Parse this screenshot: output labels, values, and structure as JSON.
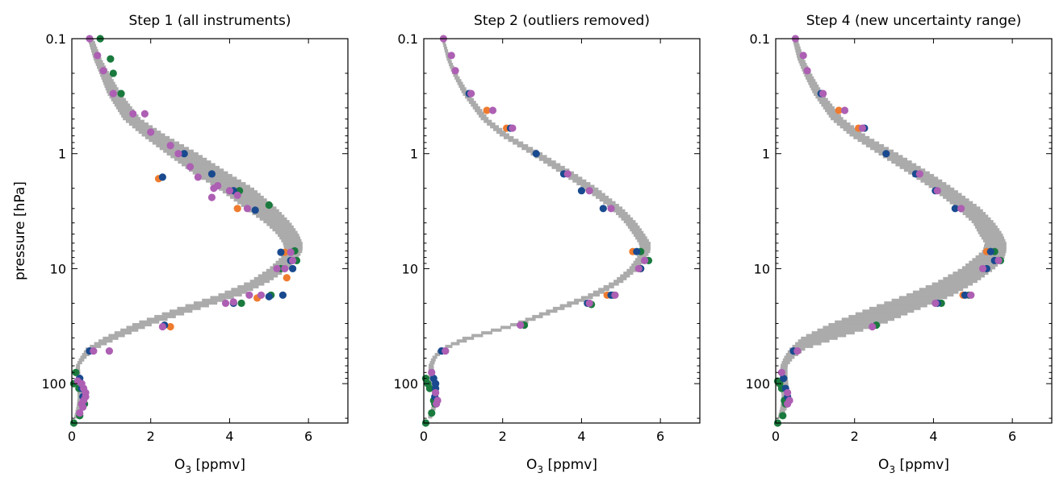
{
  "figure": {
    "ylabel": "pressure [hPa]",
    "xlabel_main": "O",
    "xlabel_sub": "3",
    "xlabel_rest": " [ppmv]",
    "colors": {
      "band": "#ababab",
      "orange": "#ef7b2e",
      "green": "#1a7a3e",
      "blue": "#194a8f",
      "purple": "#ad5fb3",
      "axis": "#000000"
    }
  },
  "chart_data": [
    {
      "type": "scatter",
      "title": "Step 1 (all instruments)",
      "xlabel": "O3 [ppmv]",
      "ylabel": "pressure [hPa]",
      "xlim": [
        0,
        7
      ],
      "ylim": [
        0.1,
        220
      ],
      "yscale": "log",
      "xticks": [
        0,
        2,
        4,
        6
      ],
      "yticks": [
        0.1,
        1,
        10,
        100
      ],
      "band": {
        "p": [
          0.1,
          0.15,
          0.2,
          0.3,
          0.5,
          0.7,
          1.0,
          1.5,
          2.0,
          3.0,
          4.0,
          5.0,
          6.0,
          7.0,
          8.0,
          10.0,
          13.0,
          17.0,
          22.0,
          30.0,
          40.0,
          50.0,
          60.0,
          70.0,
          85.0,
          100.0,
          130.0,
          160.0,
          200.0
        ],
        "lower": [
          0.4,
          0.55,
          0.7,
          0.9,
          1.3,
          1.8,
          2.4,
          3.1,
          3.7,
          4.4,
          4.9,
          5.2,
          5.35,
          5.4,
          5.3,
          5.0,
          4.5,
          3.7,
          2.7,
          1.6,
          0.8,
          0.35,
          0.2,
          0.1,
          0.1,
          0.12,
          0.15,
          0.12,
          0.05
        ],
        "upper": [
          0.55,
          0.75,
          0.95,
          1.25,
          1.75,
          2.4,
          3.2,
          4.0,
          4.6,
          5.2,
          5.55,
          5.75,
          5.85,
          5.85,
          5.75,
          5.5,
          5.0,
          4.3,
          3.3,
          2.1,
          1.2,
          0.6,
          0.35,
          0.2,
          0.22,
          0.3,
          0.35,
          0.3,
          0.12
        ]
      },
      "series": [
        {
          "color": "orange",
          "x": [
            2.2,
            4.2,
            5.4,
            5.45,
            4.7,
            2.5
          ],
          "p": [
            1.65,
            3.0,
            7.2,
            12.0,
            18.0,
            32.0
          ]
        },
        {
          "color": "green",
          "x": [
            0.72,
            0.98,
            1.05,
            1.25,
            4.25,
            5.0,
            5.65,
            5.7,
            5.3,
            5.05,
            4.3,
            0.1,
            0.05,
            0.18,
            0.32,
            0.2,
            0.05
          ],
          "p": [
            0.1,
            0.15,
            0.2,
            0.3,
            2.1,
            2.8,
            7.0,
            8.5,
            10.0,
            17.0,
            20.0,
            80.0,
            100.0,
            110.0,
            150.0,
            190.0,
            220.0
          ]
        },
        {
          "color": "blue",
          "x": [
            2.3,
            2.85,
            3.55,
            4.1,
            4.65,
            5.3,
            5.55,
            5.6,
            5.35,
            5.0,
            4.1,
            2.35,
            0.45,
            0.2,
            0.25,
            0.28,
            0.27
          ],
          "p": [
            1.6,
            1.0,
            1.5,
            2.1,
            3.1,
            7.2,
            8.5,
            10.0,
            17.0,
            17.5,
            20.0,
            31.0,
            52.0,
            90.0,
            110.0,
            130.0,
            150.0
          ]
        },
        {
          "color": "purple",
          "x": [
            0.45,
            0.65,
            0.8,
            1.05,
            1.55,
            1.85,
            2.0,
            2.5,
            2.7,
            3.0,
            3.2,
            3.7,
            3.6,
            3.55,
            4.0,
            4.2,
            4.45,
            5.55,
            5.6,
            5.2,
            5.4,
            4.8,
            4.5,
            3.9,
            4.1,
            2.3,
            0.55,
            0.95,
            0.15,
            0.25,
            0.3,
            0.35,
            0.35,
            0.3,
            0.25,
            0.28,
            0.2
          ],
          "p": [
            0.1,
            0.14,
            0.19,
            0.3,
            0.45,
            0.45,
            0.65,
            0.85,
            1.0,
            1.3,
            1.6,
            1.9,
            2.0,
            2.4,
            2.1,
            2.3,
            3.0,
            7.2,
            8.5,
            10.0,
            10.0,
            17.0,
            17.0,
            20.0,
            19.5,
            32.0,
            52.0,
            52.0,
            95.0,
            100.0,
            110.0,
            120.0,
            130.0,
            140.0,
            150.0,
            160.0,
            180.0
          ]
        }
      ]
    },
    {
      "type": "scatter",
      "title": "Step 2 (outliers removed)",
      "xlabel": "O3 [ppmv]",
      "ylabel": "",
      "xlim": [
        0,
        7
      ],
      "ylim": [
        0.1,
        220
      ],
      "yscale": "log",
      "xticks": [
        0,
        2,
        4,
        6
      ],
      "yticks": [
        0.1,
        1,
        10,
        100
      ],
      "band": {
        "p": [
          0.1,
          0.15,
          0.2,
          0.3,
          0.5,
          0.7,
          1.0,
          1.5,
          2.0,
          3.0,
          4.0,
          5.0,
          6.0,
          7.0,
          8.0,
          10.0,
          13.0,
          17.0,
          22.0,
          30.0,
          40.0,
          50.0,
          60.0,
          70.0,
          85.0,
          100.0,
          130.0,
          160.0,
          200.0
        ],
        "lower": [
          0.45,
          0.58,
          0.72,
          0.98,
          1.45,
          1.95,
          2.7,
          3.5,
          4.05,
          4.75,
          5.1,
          5.3,
          5.45,
          5.5,
          5.4,
          5.2,
          4.8,
          4.15,
          3.3,
          2.3,
          1.0,
          0.4,
          0.2,
          0.12,
          0.12,
          0.18,
          0.22,
          0.2,
          0.1
        ],
        "upper": [
          0.52,
          0.68,
          0.84,
          1.15,
          1.65,
          2.2,
          3.0,
          3.85,
          4.4,
          5.05,
          5.4,
          5.6,
          5.75,
          5.75,
          5.65,
          5.45,
          5.05,
          4.45,
          3.6,
          2.55,
          1.3,
          0.55,
          0.32,
          0.25,
          0.28,
          0.32,
          0.35,
          0.32,
          0.2
        ]
      },
      "series": [
        {
          "color": "orange",
          "x": [
            1.6,
            2.1,
            4.65,
            5.3,
            5.5
          ],
          "p": [
            0.42,
            0.6,
            17.0,
            7.1,
            10.0
          ]
        },
        {
          "color": "green",
          "x": [
            5.5,
            5.7,
            4.8,
            4.25,
            2.55,
            0.05,
            0.1,
            0.15,
            0.25,
            0.28,
            0.2,
            0.05
          ],
          "p": [
            7.1,
            8.5,
            17.0,
            20.5,
            31.0,
            90.0,
            100.0,
            110.0,
            140.0,
            150.0,
            180.0,
            220.0
          ]
        },
        {
          "color": "blue",
          "x": [
            1.15,
            2.2,
            2.85,
            3.55,
            4.0,
            4.55,
            5.4,
            5.5,
            4.75,
            4.15,
            0.45,
            0.25,
            0.3,
            0.3,
            0.28
          ],
          "p": [
            0.3,
            0.6,
            1.0,
            1.5,
            2.1,
            3.0,
            7.1,
            10.0,
            17.0,
            20.0,
            52.0,
            90.0,
            100.0,
            110.0,
            130.0
          ]
        },
        {
          "color": "purple",
          "x": [
            0.5,
            0.7,
            0.8,
            1.2,
            1.75,
            2.25,
            3.65,
            4.2,
            4.75,
            5.6,
            5.45,
            4.85,
            4.2,
            2.45,
            0.55,
            0.2,
            0.3,
            0.35,
            0.32
          ],
          "p": [
            0.1,
            0.14,
            0.19,
            0.3,
            0.42,
            0.6,
            1.5,
            2.1,
            3.0,
            8.5,
            10.0,
            17.0,
            20.0,
            31.0,
            52.0,
            80.0,
            120.0,
            140.0,
            150.0
          ]
        }
      ]
    },
    {
      "type": "scatter",
      "title": "Step 4 (new uncertainty range)",
      "xlabel": "O3 [ppmv]",
      "ylabel": "",
      "xlim": [
        0,
        7
      ],
      "ylim": [
        0.1,
        220
      ],
      "yscale": "log",
      "xticks": [
        0,
        2,
        4,
        6
      ],
      "yticks": [
        0.1,
        1,
        10,
        100
      ],
      "band": {
        "p": [
          0.1,
          0.15,
          0.2,
          0.3,
          0.5,
          0.7,
          1.0,
          1.5,
          2.0,
          3.0,
          4.0,
          5.0,
          6.0,
          7.0,
          8.0,
          10.0,
          13.0,
          17.0,
          22.0,
          30.0,
          40.0,
          50.0,
          60.0,
          70.0,
          85.0,
          100.0,
          130.0,
          160.0,
          200.0
        ],
        "lower": [
          0.42,
          0.55,
          0.7,
          0.95,
          1.4,
          1.9,
          2.6,
          3.4,
          3.95,
          4.6,
          5.0,
          5.15,
          5.3,
          5.25,
          5.05,
          4.7,
          4.1,
          3.3,
          2.4,
          1.4,
          0.65,
          0.35,
          0.2,
          0.12,
          0.1,
          0.12,
          0.15,
          0.12,
          0.05
        ],
        "upper": [
          0.55,
          0.72,
          0.9,
          1.2,
          1.72,
          2.3,
          3.1,
          3.95,
          4.5,
          5.2,
          5.55,
          5.75,
          5.85,
          5.85,
          5.8,
          5.55,
          5.1,
          4.5,
          3.7,
          2.75,
          1.6,
          0.75,
          0.45,
          0.3,
          0.3,
          0.32,
          0.35,
          0.3,
          0.15
        ]
      },
      "series": [
        {
          "color": "orange",
          "x": [
            1.6,
            2.1,
            5.35,
            4.75
          ],
          "p": [
            0.42,
            0.6,
            7.1,
            17.0
          ]
        },
        {
          "color": "green",
          "x": [
            5.55,
            5.7,
            4.9,
            4.2,
            2.55,
            0.05,
            0.1,
            0.15,
            0.22,
            0.25,
            0.18,
            0.05
          ],
          "p": [
            7.1,
            8.5,
            17.0,
            20.0,
            31.0,
            95.0,
            100.0,
            110.0,
            140.0,
            150.0,
            190.0,
            220.0
          ]
        },
        {
          "color": "blue",
          "x": [
            1.15,
            2.25,
            2.8,
            3.55,
            4.05,
            4.55,
            5.45,
            5.55,
            5.35,
            4.8,
            4.1,
            0.45,
            0.2,
            0.25,
            0.3
          ],
          "p": [
            0.3,
            0.6,
            1.0,
            1.5,
            2.1,
            3.0,
            7.1,
            8.5,
            10.0,
            17.0,
            20.0,
            52.0,
            90.0,
            110.0,
            130.0
          ]
        },
        {
          "color": "purple",
          "x": [
            0.5,
            0.7,
            0.8,
            1.2,
            1.75,
            2.2,
            3.65,
            4.1,
            4.7,
            5.65,
            5.25,
            4.95,
            4.05,
            2.45,
            0.55,
            0.15,
            0.3,
            0.35,
            0.3
          ],
          "p": [
            0.1,
            0.14,
            0.19,
            0.3,
            0.42,
            0.6,
            1.5,
            2.1,
            3.0,
            8.5,
            10.0,
            17.0,
            20.0,
            32.0,
            52.0,
            80.0,
            120.0,
            140.0,
            150.0
          ]
        }
      ]
    }
  ]
}
